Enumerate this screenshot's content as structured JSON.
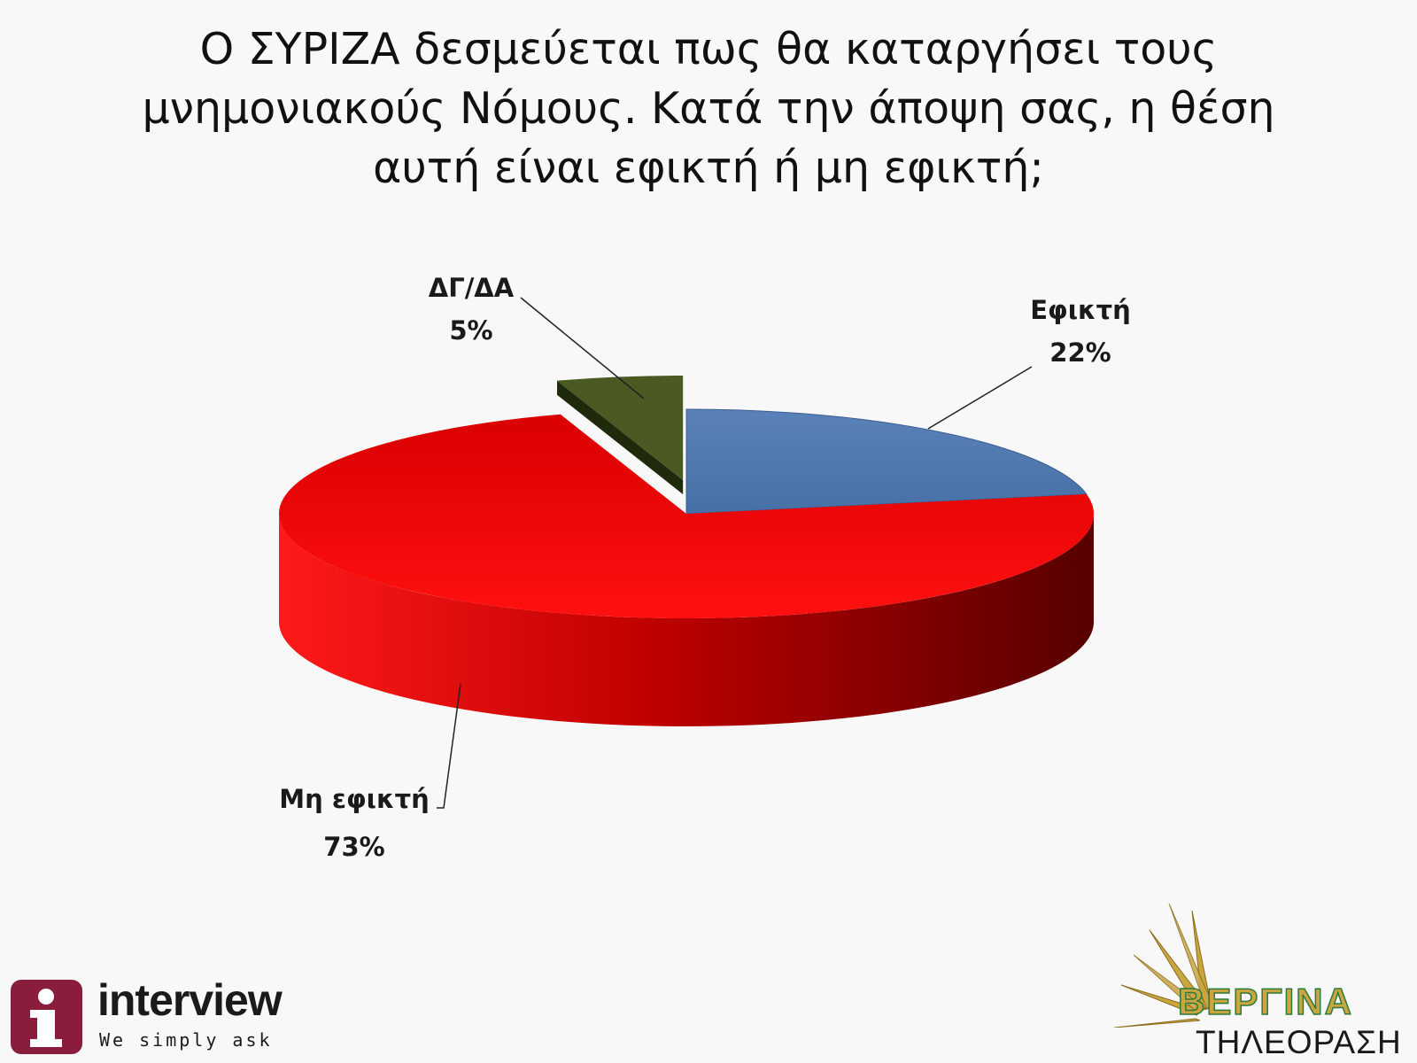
{
  "title_lines": [
    "Ο ΣΥΡΙΖΑ δεσμεύεται πως θα καταργήσει τους",
    "μνημονιακούς Νόμους. Κατά την άποψη σας, η θέση",
    "αυτή είναι εφικτή  ή μη εφικτή;"
  ],
  "chart_data": {
    "type": "pie",
    "title": "Ο ΣΥΡΙΖΑ δεσμεύεται πως θα καταργήσει τους μνημονιακούς Νόμους. Κατά την άποψη σας, η θέση αυτή είναι εφικτή  ή μη εφικτή;",
    "slices": [
      {
        "label": "Εφικτή",
        "value": 22,
        "value_label": "22%",
        "color": "#4f79b0"
      },
      {
        "label": "Μη εφικτή",
        "value": 73,
        "value_label": "73%",
        "color": "#e20000"
      },
      {
        "label": "ΔΓ/ΔΑ",
        "value": 5,
        "value_label": "5%",
        "color": "#4a5a22"
      }
    ]
  },
  "logos": {
    "interview": {
      "icon": "info-i-icon",
      "name": "interview",
      "slogan": "We simply ask",
      "color": "#8a1d3b"
    },
    "vergina": {
      "name": "ΒΕΡΓΙΝΑ",
      "subtitle": "ΤΗΛΕΟΡΑΣΗ",
      "icon": "vergina-sun-icon",
      "color": "#c9a640"
    }
  }
}
